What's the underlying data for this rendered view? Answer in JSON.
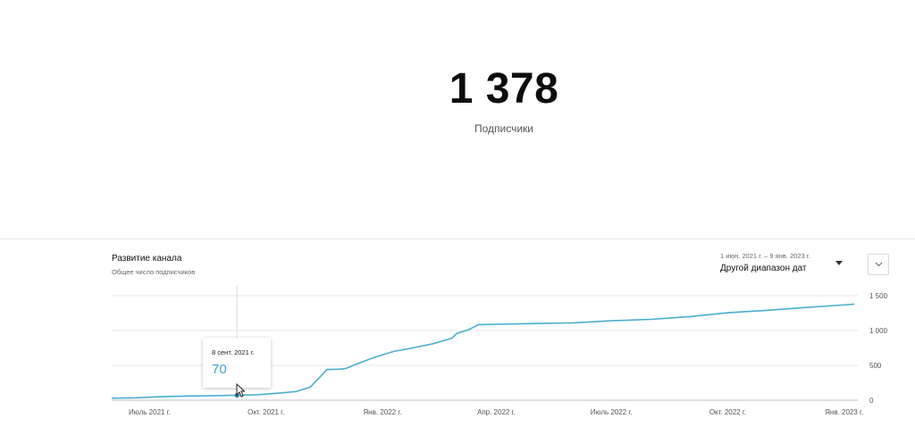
{
  "summary": {
    "value": "1 378",
    "label": "Подписчики"
  },
  "chart_panel": {
    "title": "Развитие канала",
    "subtitle": "Общее число подписчиков",
    "date_range_text": "1 июн. 2021 г. – 9 янв. 2023 г.",
    "date_range_value": "Другой диапазон дат",
    "dropdown_icon": "caret-down-icon",
    "expand_icon": "chevron-down-icon"
  },
  "tooltip": {
    "date": "8 сент. 2021 г.",
    "value": "70"
  },
  "colors": {
    "line": "#4aaed0",
    "tooltip_value": "#3fa3c4",
    "grid": "#e6e6e6"
  },
  "chart_data": {
    "type": "line",
    "title": "Развитие канала",
    "subtitle": "Общее число подписчиков",
    "xlabel": "",
    "ylabel": "",
    "x_range": [
      "2021-06-01",
      "2023-01-09"
    ],
    "ylim": [
      0,
      1500
    ],
    "y_ticks": [
      0,
      500,
      1000,
      1500
    ],
    "y_tick_labels": [
      "0",
      "500",
      "1 000",
      "1 500"
    ],
    "x_ticks": [
      {
        "date": "2021-07-01",
        "label": "Июль 2021 г."
      },
      {
        "date": "2021-10-01",
        "label": "Окт. 2021 г."
      },
      {
        "date": "2022-01-01",
        "label": "Янв. 2022 г."
      },
      {
        "date": "2022-04-01",
        "label": "Апр. 2022 г."
      },
      {
        "date": "2022-07-01",
        "label": "Июль 2022 г."
      },
      {
        "date": "2022-10-01",
        "label": "Окт. 2022 г."
      },
      {
        "date": "2023-01-01",
        "label": "Янв. 2023 г."
      }
    ],
    "grid": true,
    "highlight": {
      "date": "2021-09-08",
      "value": 70
    },
    "series": [
      {
        "values": [
          {
            "date": "2021-06-01",
            "value": 30
          },
          {
            "date": "2021-06-20",
            "value": 35
          },
          {
            "date": "2021-07-10",
            "value": 50
          },
          {
            "date": "2021-08-01",
            "value": 60
          },
          {
            "date": "2021-08-20",
            "value": 65
          },
          {
            "date": "2021-09-08",
            "value": 70
          },
          {
            "date": "2021-09-25",
            "value": 80
          },
          {
            "date": "2021-10-10",
            "value": 100
          },
          {
            "date": "2021-10-25",
            "value": 125
          },
          {
            "date": "2021-11-05",
            "value": 190
          },
          {
            "date": "2021-11-12",
            "value": 320
          },
          {
            "date": "2021-11-18",
            "value": 440
          },
          {
            "date": "2021-11-28",
            "value": 445
          },
          {
            "date": "2021-12-03",
            "value": 455
          },
          {
            "date": "2021-12-12",
            "value": 520
          },
          {
            "date": "2021-12-25",
            "value": 610
          },
          {
            "date": "2022-01-10",
            "value": 700
          },
          {
            "date": "2022-01-25",
            "value": 750
          },
          {
            "date": "2022-02-10",
            "value": 810
          },
          {
            "date": "2022-02-25",
            "value": 890
          },
          {
            "date": "2022-03-01",
            "value": 960
          },
          {
            "date": "2022-03-10",
            "value": 1010
          },
          {
            "date": "2022-03-18",
            "value": 1085
          },
          {
            "date": "2022-04-01",
            "value": 1090
          },
          {
            "date": "2022-05-01",
            "value": 1100
          },
          {
            "date": "2022-06-01",
            "value": 1110
          },
          {
            "date": "2022-07-01",
            "value": 1140
          },
          {
            "date": "2022-08-01",
            "value": 1160
          },
          {
            "date": "2022-09-01",
            "value": 1200
          },
          {
            "date": "2022-10-01",
            "value": 1255
          },
          {
            "date": "2022-11-01",
            "value": 1290
          },
          {
            "date": "2022-12-01",
            "value": 1330
          },
          {
            "date": "2023-01-09",
            "value": 1378
          }
        ]
      }
    ]
  }
}
